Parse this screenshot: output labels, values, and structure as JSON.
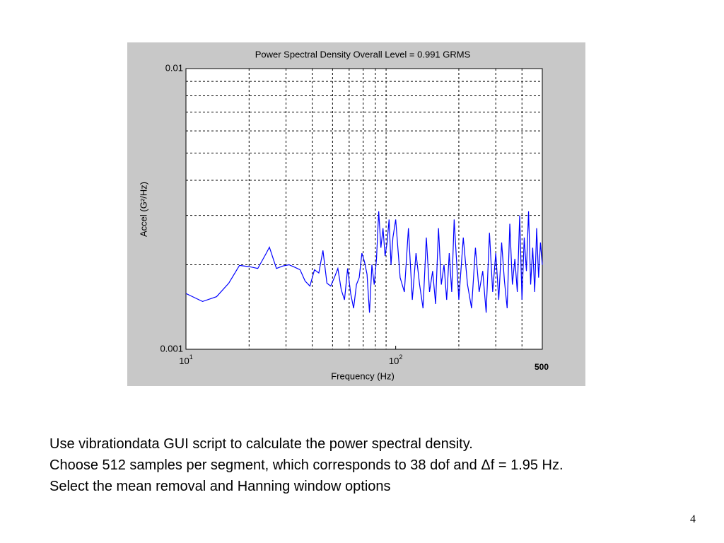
{
  "chart_data": {
    "type": "line",
    "title": "Power Spectral Density  Overall Level =  0.991 GRMS",
    "x_label": "Frequency (Hz)",
    "y_label": "Accel (G²/Hz)",
    "annotation": "500",
    "log_x": true,
    "log_y": true,
    "grid": true,
    "color": "#0000ff",
    "xlim": [
      10,
      500
    ],
    "ylim": [
      0.001,
      0.01
    ],
    "xticks": [
      {
        "value": 10,
        "label": "10",
        "exponent": "1"
      },
      {
        "value": 100,
        "label": "10",
        "exponent": "2"
      }
    ],
    "x_minor_ticks": [
      20,
      30,
      40,
      50,
      60,
      70,
      80,
      90,
      200,
      300,
      400
    ],
    "yticks": [
      0.001,
      0.01
    ],
    "y_minor_ticks": [
      0.002,
      0.003,
      0.004,
      0.005,
      0.006,
      0.007,
      0.008,
      0.009
    ],
    "x": [
      10,
      12,
      14,
      16,
      18,
      20,
      22,
      24,
      25,
      27,
      29,
      31,
      33,
      35,
      37,
      39,
      41,
      43,
      45,
      47,
      49,
      51,
      53,
      55,
      57,
      59,
      61,
      63,
      65,
      67,
      69,
      71,
      73,
      75,
      77,
      79,
      81,
      83,
      85,
      87,
      89,
      91,
      93,
      95,
      97,
      100,
      105,
      110,
      115,
      120,
      125,
      130,
      135,
      140,
      145,
      150,
      155,
      160,
      165,
      170,
      175,
      180,
      185,
      190,
      200,
      210,
      220,
      230,
      240,
      250,
      260,
      270,
      280,
      290,
      300,
      310,
      320,
      330,
      340,
      350,
      360,
      370,
      380,
      390,
      400,
      410,
      420,
      430,
      440,
      450,
      460,
      470,
      480,
      490,
      500
    ],
    "values": [
      0.00158,
      0.00148,
      0.00154,
      0.00172,
      0.00199,
      0.00197,
      0.00194,
      0.00218,
      0.00231,
      0.00194,
      0.00198,
      0.002,
      0.00196,
      0.00192,
      0.00175,
      0.00168,
      0.00192,
      0.00187,
      0.00225,
      0.00172,
      0.00168,
      0.0018,
      0.00194,
      0.00163,
      0.0015,
      0.00194,
      0.00158,
      0.0014,
      0.0017,
      0.0018,
      0.0022,
      0.00205,
      0.00185,
      0.00135,
      0.002,
      0.0017,
      0.0021,
      0.0031,
      0.0023,
      0.0027,
      0.00215,
      0.0024,
      0.0029,
      0.002,
      0.0025,
      0.0029,
      0.0018,
      0.0016,
      0.0027,
      0.0015,
      0.0022,
      0.0017,
      0.0014,
      0.0025,
      0.0016,
      0.0019,
      0.00145,
      0.0027,
      0.0017,
      0.002,
      0.0015,
      0.0022,
      0.0016,
      0.0029,
      0.0015,
      0.0025,
      0.0017,
      0.0014,
      0.0023,
      0.0016,
      0.0019,
      0.00135,
      0.0026,
      0.0016,
      0.0022,
      0.0015,
      0.0024,
      0.00175,
      0.0014,
      0.0028,
      0.0017,
      0.0021,
      0.0016,
      0.003,
      0.0015,
      0.0025,
      0.0019,
      0.0031,
      0.0017,
      0.0023,
      0.0016,
      0.0027,
      0.0018,
      0.0024,
      0.002
    ]
  },
  "slide": {
    "lines": [
      "Use vibrationdata GUI script to calculate the power spectral density.",
      "Choose 512 samples per segment, which corresponds to 38 dof and Δf = 1.95 Hz.",
      "Select the mean removal and Hanning window options"
    ],
    "page_number": "4"
  }
}
